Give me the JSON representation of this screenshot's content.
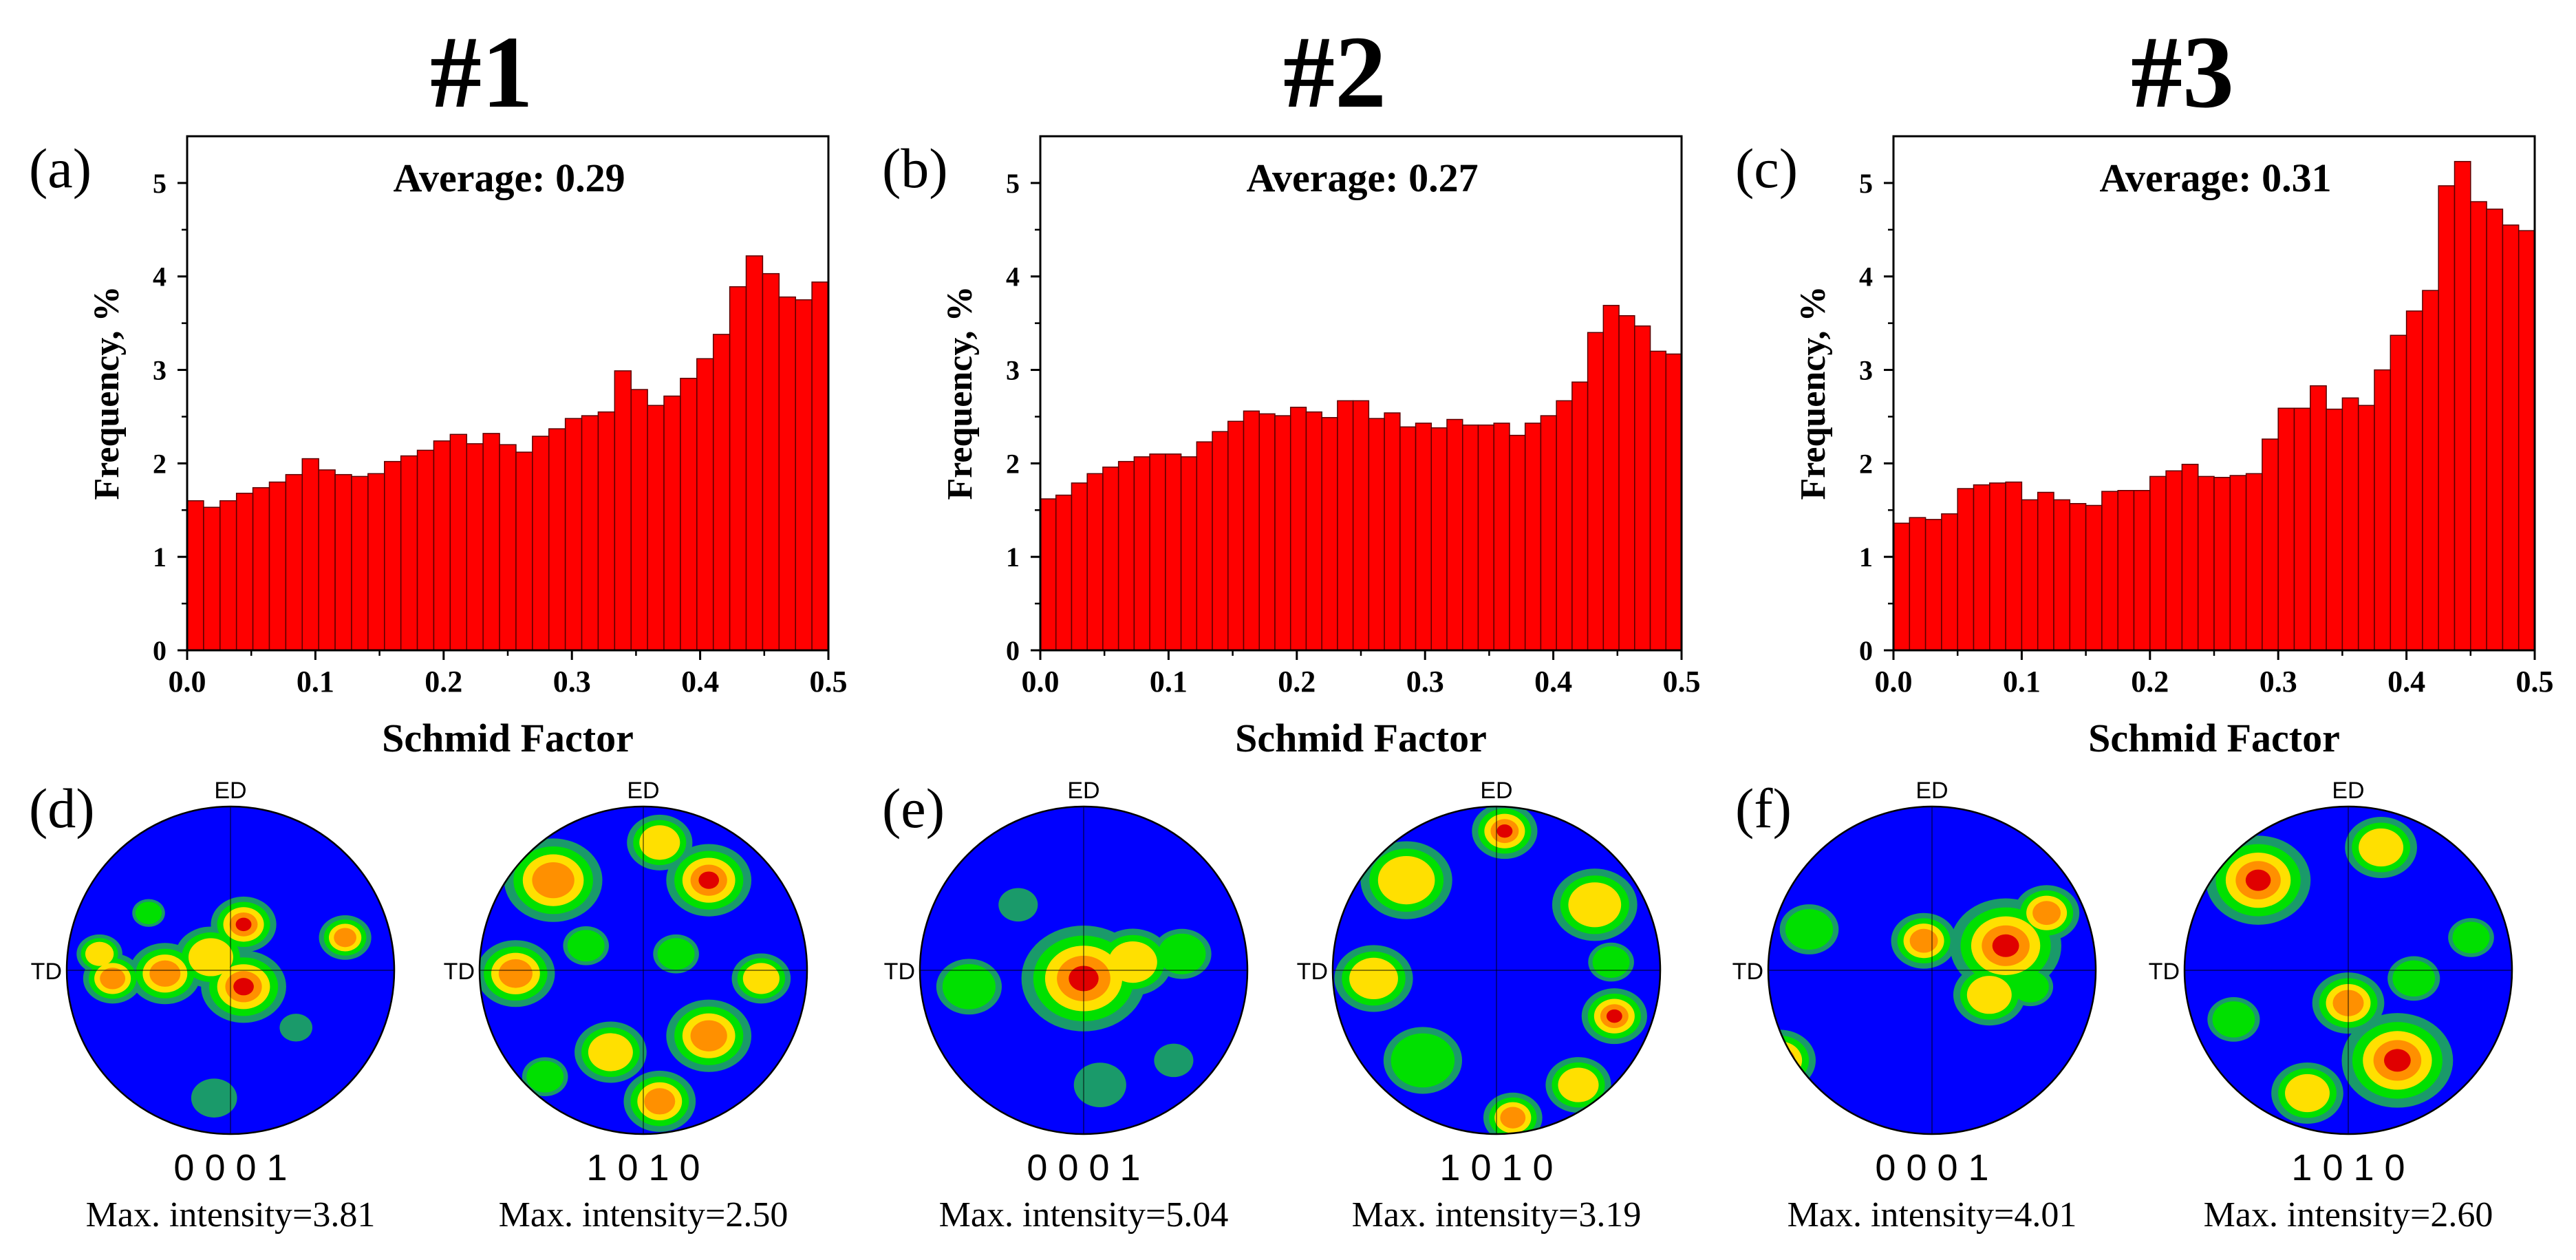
{
  "columns": [
    {
      "header": "#1"
    },
    {
      "header": "#2"
    },
    {
      "header": "#3"
    }
  ],
  "colors": {
    "bar_fill": "#ff0000",
    "bar_stroke": "#5a0000",
    "pf_blue": "#0000ff",
    "pf_teal": "#1a9a6a",
    "pf_green": "#00e000",
    "pf_yellow": "#ffe000",
    "pf_orange": "#ff9000",
    "pf_red": "#e00000"
  },
  "chart_data": [
    {
      "type": "bar",
      "panel_label": "(a)",
      "annotation": "Average: 0.29",
      "xlabel": "Schmid Factor",
      "ylabel": "Frequency, %",
      "xlim": [
        0.0,
        0.5
      ],
      "ylim": [
        0,
        5.5
      ],
      "xticks": [
        "0.0",
        "0.1",
        "0.2",
        "0.3",
        "0.4",
        "0.5"
      ],
      "yticks": [
        "0",
        "1",
        "2",
        "3",
        "4",
        "5"
      ],
      "bin_width": 0.0125,
      "values": [
        1.6,
        1.53,
        1.6,
        1.68,
        1.74,
        1.8,
        1.88,
        2.05,
        1.93,
        1.88,
        1.86,
        1.89,
        2.02,
        2.08,
        2.14,
        2.24,
        2.31,
        2.21,
        2.32,
        2.2,
        2.12,
        2.29,
        2.37,
        2.48,
        2.51,
        2.55,
        2.99,
        2.79,
        2.62,
        2.72,
        2.91,
        3.12,
        3.38,
        3.89,
        4.22,
        4.03,
        3.78,
        3.75,
        3.94
      ]
    },
    {
      "type": "bar",
      "panel_label": "(b)",
      "annotation": "Average: 0.27",
      "xlabel": "Schmid Factor",
      "ylabel": "Frequency, %",
      "xlim": [
        0.0,
        0.5
      ],
      "ylim": [
        0,
        5.5
      ],
      "xticks": [
        "0.0",
        "0.1",
        "0.2",
        "0.3",
        "0.4",
        "0.5"
      ],
      "yticks": [
        "0",
        "1",
        "2",
        "3",
        "4",
        "5"
      ],
      "bin_width": 0.0125,
      "values": [
        1.62,
        1.66,
        1.79,
        1.89,
        1.96,
        2.02,
        2.07,
        2.1,
        2.1,
        2.07,
        2.23,
        2.34,
        2.45,
        2.56,
        2.53,
        2.51,
        2.6,
        2.55,
        2.49,
        2.67,
        2.67,
        2.48,
        2.54,
        2.39,
        2.43,
        2.38,
        2.47,
        2.41,
        2.41,
        2.43,
        2.3,
        2.43,
        2.51,
        2.67,
        2.87,
        3.4,
        3.69,
        3.58,
        3.47,
        3.2,
        3.17
      ]
    },
    {
      "type": "bar",
      "panel_label": "(c)",
      "annotation": "Average: 0.31",
      "xlabel": "Schmid Factor",
      "ylabel": "Frequency, %",
      "xlim": [
        0.0,
        0.5
      ],
      "ylim": [
        0,
        5.5
      ],
      "xticks": [
        "0.0",
        "0.1",
        "0.2",
        "0.3",
        "0.4",
        "0.5"
      ],
      "yticks": [
        "0",
        "1",
        "2",
        "3",
        "4",
        "5"
      ],
      "bin_width": 0.0125,
      "values": [
        1.36,
        1.42,
        1.4,
        1.46,
        1.73,
        1.77,
        1.79,
        1.8,
        1.61,
        1.69,
        1.61,
        1.57,
        1.55,
        1.7,
        1.71,
        1.71,
        1.86,
        1.92,
        1.99,
        1.86,
        1.85,
        1.87,
        1.89,
        2.26,
        2.59,
        2.59,
        2.83,
        2.58,
        2.7,
        2.62,
        3.0,
        3.37,
        3.63,
        3.85,
        4.97,
        5.23,
        4.8,
        4.72,
        4.55,
        4.49
      ]
    }
  ],
  "pole_figures": [
    {
      "panel_label": "(d)",
      "ed_label": "ED",
      "td_label": "TD",
      "plane": "0 0 0 1",
      "max_intensity": "Max. intensity=3.81"
    },
    {
      "panel_label": "",
      "ed_label": "ED",
      "td_label": "TD",
      "plane": "1 0 1 0",
      "max_intensity": "Max. intensity=2.50"
    },
    {
      "panel_label": "(e)",
      "ed_label": "ED",
      "td_label": "TD",
      "plane": "0 0 0 1",
      "max_intensity": "Max. intensity=5.04"
    },
    {
      "panel_label": "",
      "ed_label": "ED",
      "td_label": "TD",
      "plane": "1 0 1 0",
      "max_intensity": "Max. intensity=3.19"
    },
    {
      "panel_label": "(f)",
      "ed_label": "ED",
      "td_label": "TD",
      "plane": "0 0 0 1",
      "max_intensity": "Max. intensity=4.01"
    },
    {
      "panel_label": "",
      "ed_label": "ED",
      "td_label": "TD",
      "plane": "1 0 1 0",
      "max_intensity": "Max. intensity=2.60"
    }
  ]
}
